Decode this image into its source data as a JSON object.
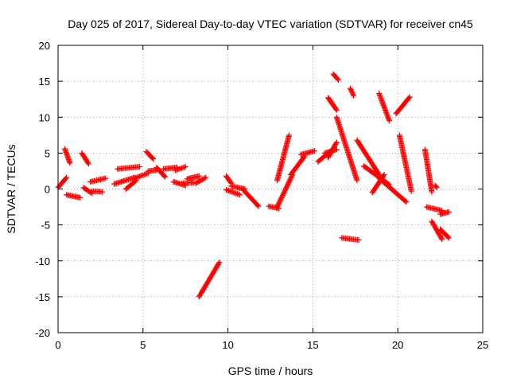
{
  "chart_data": {
    "type": "scatter",
    "title": "Day 025 of 2017, Sidereal Day-to-day VTEC variation (SDTVAR) for receiver cn45",
    "xlabel": "GPS time / hours",
    "ylabel": "SDTVAR / TECUs",
    "xlim": [
      0,
      25
    ],
    "ylim": [
      -20,
      20
    ],
    "xticks": [
      0,
      5,
      10,
      15,
      20,
      25
    ],
    "yticks": [
      -20,
      -15,
      -10,
      -5,
      0,
      5,
      10,
      15,
      20
    ],
    "xtick_labels": [
      "0",
      "5",
      "10",
      "15",
      "20",
      "25"
    ],
    "ytick_labels": [
      "-20",
      "-15",
      "-10",
      "-5",
      "0",
      "5",
      "10",
      "15",
      "20"
    ],
    "grid": true,
    "marker": "plus",
    "color": "#ff0000",
    "segments": [
      {
        "x": [
          0.0,
          0.5
        ],
        "y": [
          0.2,
          1.6
        ]
      },
      {
        "x": [
          0.4,
          0.7
        ],
        "y": [
          5.6,
          3.6
        ]
      },
      {
        "x": [
          0.5,
          1.3
        ],
        "y": [
          -0.8,
          -1.2
        ]
      },
      {
        "x": [
          1.4,
          1.8
        ],
        "y": [
          5.0,
          3.5
        ]
      },
      {
        "x": [
          1.5,
          2.0
        ],
        "y": [
          0.2,
          -0.6
        ]
      },
      {
        "x": [
          1.9,
          2.8
        ],
        "y": [
          1.0,
          1.5
        ]
      },
      {
        "x": [
          2.0,
          2.6
        ],
        "y": [
          -0.3,
          -0.4
        ]
      },
      {
        "x": [
          3.3,
          4.5
        ],
        "y": [
          0.7,
          1.6
        ]
      },
      {
        "x": [
          3.5,
          4.8
        ],
        "y": [
          2.8,
          3.1
        ]
      },
      {
        "x": [
          4.0,
          4.6
        ],
        "y": [
          0.0,
          1.2
        ]
      },
      {
        "x": [
          4.5,
          5.3
        ],
        "y": [
          1.5,
          2.2
        ]
      },
      {
        "x": [
          5.2,
          5.6
        ],
        "y": [
          5.2,
          4.2
        ]
      },
      {
        "x": [
          5.3,
          5.8
        ],
        "y": [
          2.5,
          2.6
        ]
      },
      {
        "x": [
          5.8,
          6.3
        ],
        "y": [
          3.0,
          1.7
        ]
      },
      {
        "x": [
          6.2,
          7.0
        ],
        "y": [
          2.8,
          3.0
        ]
      },
      {
        "x": [
          6.9,
          7.5
        ],
        "y": [
          2.6,
          3.1
        ]
      },
      {
        "x": [
          6.8,
          7.5
        ],
        "y": [
          1.0,
          0.5
        ]
      },
      {
        "x": [
          7.3,
          8.0
        ],
        "y": [
          0.8,
          0.9
        ]
      },
      {
        "x": [
          7.6,
          8.3
        ],
        "y": [
          1.4,
          1.8
        ]
      },
      {
        "x": [
          8.1,
          8.7
        ],
        "y": [
          0.8,
          1.6
        ]
      },
      {
        "x": [
          8.3,
          9.5
        ],
        "y": [
          -15.0,
          -10.2
        ]
      },
      {
        "x": [
          9.9,
          10.2
        ],
        "y": [
          1.8,
          0.8
        ]
      },
      {
        "x": [
          9.9,
          10.7
        ],
        "y": [
          -0.1,
          -0.8
        ]
      },
      {
        "x": [
          10.2,
          11.0
        ],
        "y": [
          0.4,
          0.0
        ]
      },
      {
        "x": [
          10.9,
          11.8
        ],
        "y": [
          -0.1,
          -2.4
        ]
      },
      {
        "x": [
          12.4,
          13.0
        ],
        "y": [
          -2.4,
          -2.7
        ]
      },
      {
        "x": [
          12.9,
          13.8
        ],
        "y": [
          -2.5,
          2.0
        ]
      },
      {
        "x": [
          12.9,
          13.6
        ],
        "y": [
          1.2,
          7.5
        ]
      },
      {
        "x": [
          13.7,
          14.5
        ],
        "y": [
          2.0,
          4.5
        ]
      },
      {
        "x": [
          14.3,
          15.1
        ],
        "y": [
          4.8,
          5.3
        ]
      },
      {
        "x": [
          15.3,
          16.0
        ],
        "y": [
          3.8,
          5.2
        ]
      },
      {
        "x": [
          15.7,
          16.4
        ],
        "y": [
          5.0,
          5.5
        ]
      },
      {
        "x": [
          15.9,
          16.4
        ],
        "y": [
          4.4,
          6.5
        ]
      },
      {
        "x": [
          15.9,
          16.4
        ],
        "y": [
          12.7,
          11.0
        ]
      },
      {
        "x": [
          16.2,
          16.5
        ],
        "y": [
          16.0,
          15.2
        ]
      },
      {
        "x": [
          16.4,
          17.6
        ],
        "y": [
          10.0,
          1.2
        ]
      },
      {
        "x": [
          16.7,
          17.7
        ],
        "y": [
          -6.8,
          -7.1
        ]
      },
      {
        "x": [
          17.2,
          17.4
        ],
        "y": [
          14.0,
          13.0
        ]
      },
      {
        "x": [
          17.6,
          18.9
        ],
        "y": [
          6.8,
          2.0
        ]
      },
      {
        "x": [
          18.0,
          19.5
        ],
        "y": [
          3.2,
          0.6
        ]
      },
      {
        "x": [
          18.5,
          19.2
        ],
        "y": [
          -0.5,
          2.0
        ]
      },
      {
        "x": [
          18.9,
          20.5
        ],
        "y": [
          1.5,
          -1.8
        ]
      },
      {
        "x": [
          18.9,
          19.5
        ],
        "y": [
          13.3,
          9.5
        ]
      },
      {
        "x": [
          19.9,
          20.7
        ],
        "y": [
          10.5,
          12.8
        ]
      },
      {
        "x": [
          20.1,
          20.8
        ],
        "y": [
          7.5,
          -0.3
        ]
      },
      {
        "x": [
          21.6,
          22.0
        ],
        "y": [
          5.5,
          -0.4
        ]
      },
      {
        "x": [
          22.2,
          22.3
        ],
        "y": [
          0.5,
          0.2
        ]
      },
      {
        "x": [
          21.7,
          22.6
        ],
        "y": [
          -2.5,
          -3.0
        ]
      },
      {
        "x": [
          22.0,
          22.6
        ],
        "y": [
          -4.5,
          -7.0
        ]
      },
      {
        "x": [
          22.5,
          23.0
        ],
        "y": [
          -3.5,
          -3.2
        ]
      },
      {
        "x": [
          22.5,
          23.0
        ],
        "y": [
          -5.6,
          -6.8
        ]
      }
    ]
  }
}
